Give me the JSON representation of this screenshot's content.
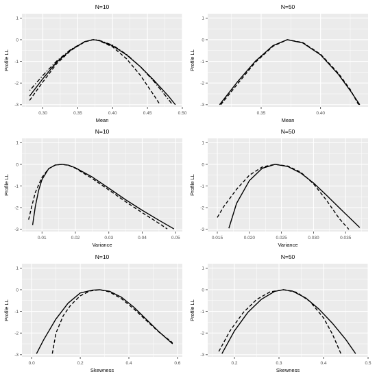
{
  "figure": {
    "background": "#ffffff",
    "panel_background": "#ebebeb",
    "grid_color": "#ffffff",
    "text_color": "#000000",
    "tick_text_color": "#4d4d4d"
  },
  "chart_data": [
    {
      "type": "line",
      "title": "N=10",
      "xlabel": "Mean",
      "ylabel": "Profile LL",
      "xlim": [
        0.27,
        0.5
      ],
      "ylim": [
        -3.1,
        1.2
      ],
      "xticks": [
        0.3,
        0.35,
        0.4,
        0.45,
        0.5
      ],
      "xtick_labels": [
        "0.30",
        "0.35",
        "0.40",
        "0.45",
        "0.50"
      ],
      "yticks": [
        -3,
        -2,
        -1,
        0,
        1
      ],
      "ytick_labels": [
        "-3",
        "-2",
        "-1",
        "0",
        "1"
      ],
      "grid": true,
      "series": [
        {
          "style": "solid",
          "x": [
            0.281,
            0.3,
            0.32,
            0.34,
            0.36,
            0.372,
            0.38,
            0.4,
            0.42,
            0.44,
            0.46,
            0.48,
            0.49
          ],
          "y": [
            -2.6,
            -1.8,
            -1.03,
            -0.48,
            -0.09,
            0.0,
            -0.03,
            -0.28,
            -0.7,
            -1.25,
            -1.9,
            -2.6,
            -3.0
          ]
        },
        {
          "style": "dashed",
          "x": [
            0.281,
            0.3,
            0.32,
            0.34,
            0.36,
            0.372,
            0.38,
            0.4,
            0.42,
            0.44,
            0.46,
            0.468
          ],
          "y": [
            -2.8,
            -1.95,
            -1.1,
            -0.5,
            -0.1,
            0.0,
            -0.04,
            -0.33,
            -0.88,
            -1.65,
            -2.6,
            -3.0
          ]
        },
        {
          "style": "dotdash",
          "x": [
            0.281,
            0.3,
            0.32,
            0.34,
            0.36,
            0.372,
            0.38,
            0.4,
            0.42,
            0.44,
            0.46,
            0.48,
            0.486
          ],
          "y": [
            -2.35,
            -1.65,
            -0.98,
            -0.45,
            -0.09,
            0.0,
            -0.02,
            -0.25,
            -0.68,
            -1.25,
            -1.95,
            -2.75,
            -3.0
          ]
        }
      ]
    },
    {
      "type": "line",
      "title": "N=50",
      "xlabel": "Mean",
      "ylabel": "Profile LL",
      "xlim": [
        0.305,
        0.44
      ],
      "ylim": [
        -3.1,
        1.2
      ],
      "xticks": [
        0.35,
        0.4
      ],
      "xtick_labels": [
        "0.35",
        "0.40"
      ],
      "yticks": [
        -3,
        -2,
        -1,
        0,
        1
      ],
      "ytick_labels": [
        "-3",
        "-2",
        "-1",
        "0",
        "1"
      ],
      "grid": true,
      "series": [
        {
          "style": "solid",
          "x": [
            0.315,
            0.33,
            0.345,
            0.36,
            0.372,
            0.385,
            0.4,
            0.415,
            0.425,
            0.433
          ],
          "y": [
            -3.0,
            -1.95,
            -1.0,
            -0.27,
            0.0,
            -0.15,
            -0.7,
            -1.6,
            -2.35,
            -3.0
          ]
        },
        {
          "style": "dashed",
          "x": [
            0.316,
            0.33,
            0.345,
            0.36,
            0.372,
            0.385,
            0.4,
            0.415,
            0.425,
            0.432
          ],
          "y": [
            -3.0,
            -2.05,
            -1.05,
            -0.3,
            0.0,
            -0.13,
            -0.67,
            -1.55,
            -2.3,
            -3.0
          ]
        }
      ]
    },
    {
      "type": "line",
      "title": "N=10",
      "xlabel": "Variance",
      "ylabel": "Profile LL",
      "xlim": [
        0.004,
        0.052
      ],
      "ylim": [
        -3.1,
        1.2
      ],
      "xticks": [
        0.01,
        0.02,
        0.03,
        0.04,
        0.05
      ],
      "xtick_labels": [
        "0.01",
        "0.02",
        "0.03",
        "0.04",
        "0.05"
      ],
      "yticks": [
        -3,
        -2,
        -1,
        0,
        1
      ],
      "ytick_labels": [
        "-3",
        "-2",
        "-1",
        "0",
        "1"
      ],
      "grid": true,
      "series": [
        {
          "style": "solid",
          "x": [
            0.0072,
            0.008,
            0.009,
            0.01,
            0.012,
            0.014,
            0.016,
            0.018,
            0.02,
            0.025,
            0.03,
            0.035,
            0.04,
            0.045,
            0.0495
          ],
          "y": [
            -2.8,
            -1.95,
            -1.2,
            -0.7,
            -0.2,
            -0.03,
            0.0,
            -0.04,
            -0.16,
            -0.58,
            -1.1,
            -1.63,
            -2.12,
            -2.58,
            -2.98
          ]
        },
        {
          "style": "dashed",
          "x": [
            0.006,
            0.007,
            0.008,
            0.01,
            0.012,
            0.014,
            0.016,
            0.018,
            0.02,
            0.025,
            0.03,
            0.035,
            0.04,
            0.045,
            0.0475
          ],
          "y": [
            -2.55,
            -1.9,
            -1.3,
            -0.6,
            -0.2,
            -0.03,
            0.0,
            -0.05,
            -0.18,
            -0.65,
            -1.18,
            -1.72,
            -2.23,
            -2.72,
            -2.98
          ]
        }
      ]
    },
    {
      "type": "line",
      "title": "N=50",
      "xlabel": "Variance",
      "ylabel": "Profile LL",
      "xlim": [
        0.0135,
        0.0385
      ],
      "ylim": [
        -3.1,
        1.2
      ],
      "xticks": [
        0.015,
        0.02,
        0.025,
        0.03,
        0.035
      ],
      "xtick_labels": [
        "0.015",
        "0.020",
        "0.025",
        "0.030",
        "0.035"
      ],
      "yticks": [
        -3,
        -2,
        -1,
        0,
        1
      ],
      "ytick_labels": [
        "-3",
        "-2",
        "-1",
        "0",
        "1"
      ],
      "grid": true,
      "series": [
        {
          "style": "solid",
          "x": [
            0.0168,
            0.018,
            0.02,
            0.022,
            0.024,
            0.026,
            0.028,
            0.03,
            0.032,
            0.034,
            0.0372
          ],
          "y": [
            -2.95,
            -1.8,
            -0.75,
            -0.18,
            0.0,
            -0.1,
            -0.4,
            -0.86,
            -1.42,
            -2.0,
            -2.92
          ]
        },
        {
          "style": "dashed",
          "x": [
            0.015,
            0.016,
            0.018,
            0.02,
            0.022,
            0.024,
            0.026,
            0.028,
            0.03,
            0.032,
            0.034,
            0.0355
          ],
          "y": [
            -2.45,
            -1.95,
            -1.15,
            -0.5,
            -0.12,
            0.0,
            -0.08,
            -0.36,
            -0.9,
            -1.65,
            -2.5,
            -3.0
          ]
        }
      ]
    },
    {
      "type": "line",
      "title": "N=10",
      "xlabel": "Skewness",
      "ylabel": "Profile LL",
      "xlim": [
        -0.04,
        0.62
      ],
      "ylim": [
        -3.1,
        1.2
      ],
      "xticks": [
        0.0,
        0.2,
        0.4,
        0.6
      ],
      "xtick_labels": [
        "0.0",
        "0.2",
        "0.4",
        "0.6"
      ],
      "yticks": [
        -3,
        -2,
        -1,
        0,
        1
      ],
      "ytick_labels": [
        "-3",
        "-2",
        "-1",
        "0",
        "1"
      ],
      "grid": true,
      "series": [
        {
          "style": "solid",
          "x": [
            0.02,
            0.05,
            0.1,
            0.15,
            0.2,
            0.25,
            0.28,
            0.32,
            0.37,
            0.42,
            0.47,
            0.52,
            0.58
          ],
          "y": [
            -2.95,
            -2.3,
            -1.35,
            -0.62,
            -0.15,
            -0.02,
            0.0,
            -0.07,
            -0.35,
            -0.8,
            -1.35,
            -1.9,
            -2.5
          ]
        },
        {
          "style": "dashed",
          "x": [
            0.085,
            0.1,
            0.13,
            0.16,
            0.2,
            0.24,
            0.28,
            0.32,
            0.37,
            0.42,
            0.47,
            0.52,
            0.58
          ],
          "y": [
            -2.95,
            -2.0,
            -1.2,
            -0.72,
            -0.28,
            -0.06,
            0.0,
            -0.1,
            -0.42,
            -0.88,
            -1.4,
            -1.92,
            -2.45
          ]
        }
      ]
    },
    {
      "type": "line",
      "title": "N=50",
      "xlabel": "Skewness",
      "ylabel": "Profile LL",
      "xlim": [
        0.14,
        0.5
      ],
      "ylim": [
        -3.1,
        1.2
      ],
      "xticks": [
        0.2,
        0.3,
        0.4,
        0.5
      ],
      "xtick_labels": [
        "0.2",
        "0.3",
        "0.4",
        "0.5"
      ],
      "yticks": [
        -3,
        -2,
        -1,
        0,
        1
      ],
      "ytick_labels": [
        "-3",
        "-2",
        "-1",
        "0",
        "1"
      ],
      "grid": true,
      "series": [
        {
          "style": "solid",
          "x": [
            0.172,
            0.2,
            0.23,
            0.26,
            0.29,
            0.31,
            0.33,
            0.36,
            0.39,
            0.42,
            0.45,
            0.472
          ],
          "y": [
            -2.95,
            -1.9,
            -1.05,
            -0.45,
            -0.08,
            0.0,
            -0.06,
            -0.38,
            -0.9,
            -1.55,
            -2.3,
            -2.95
          ]
        },
        {
          "style": "dashed",
          "x": [
            0.165,
            0.19,
            0.22,
            0.25,
            0.28,
            0.31,
            0.34,
            0.37,
            0.4,
            0.42,
            0.44
          ],
          "y": [
            -2.85,
            -1.9,
            -1.05,
            -0.45,
            -0.1,
            0.0,
            -0.12,
            -0.55,
            -1.3,
            -2.05,
            -3.0
          ]
        }
      ]
    }
  ]
}
